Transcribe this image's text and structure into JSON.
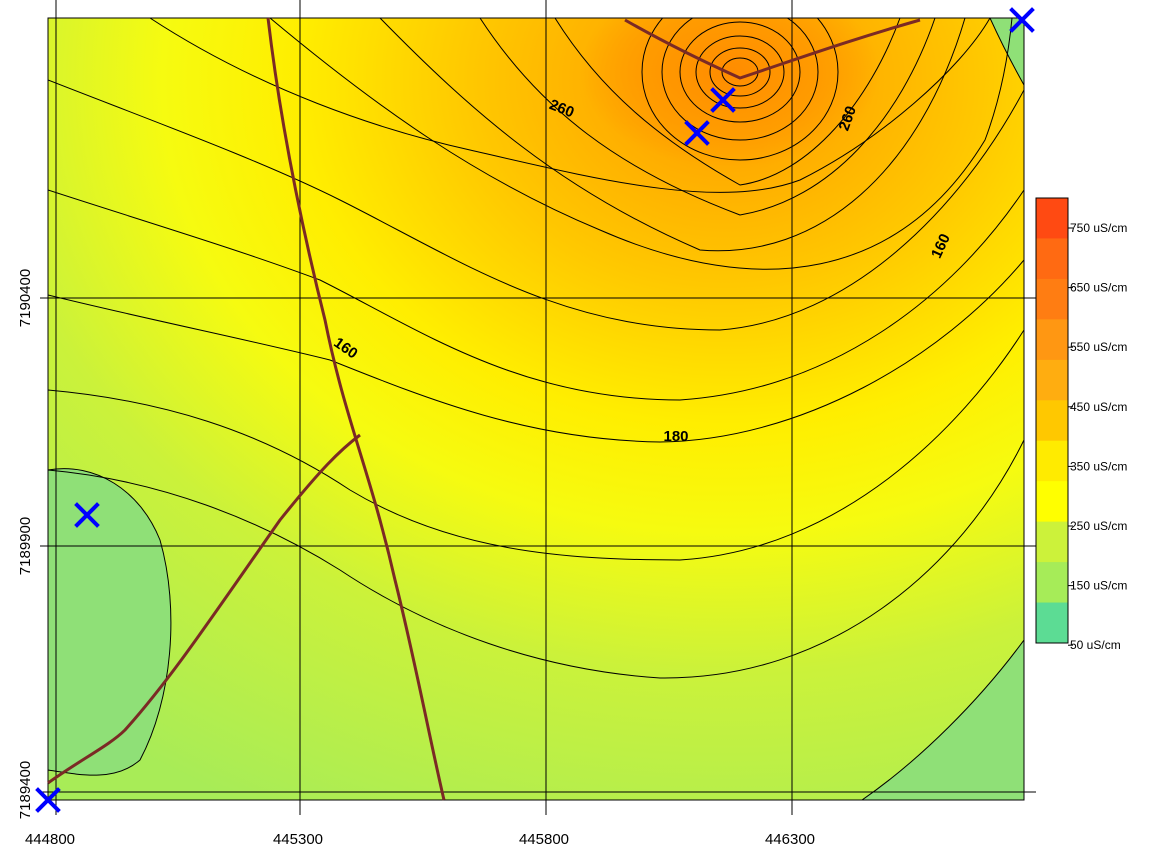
{
  "map": {
    "x_ticks": [
      "444800",
      "445300",
      "445800",
      "446300"
    ],
    "y_ticks": [
      "7190400",
      "7189900",
      "7189400"
    ],
    "contour_labels": [
      "260",
      "260",
      "160",
      "180",
      "160"
    ],
    "legend": {
      "entries": [
        "750 uS/cm",
        "650 uS/cm",
        "550 uS/cm",
        "450 uS/cm",
        "350 uS/cm",
        "250 uS/cm",
        "150 uS/cm",
        "50 uS/cm"
      ],
      "colors": [
        "#ff4a12",
        "#ff6a12",
        "#ff7d12",
        "#ff9712",
        "#ffad10",
        "#ffc800",
        "#ffeb00",
        "#ffff00",
        "#ccf23a",
        "#a6ec58",
        "#5cdc94"
      ]
    },
    "sample_point_count": 5,
    "colors": {
      "sample_marker": "#0000ff",
      "roads": "#7b2a25",
      "contour_lines": "#000000"
    }
  }
}
